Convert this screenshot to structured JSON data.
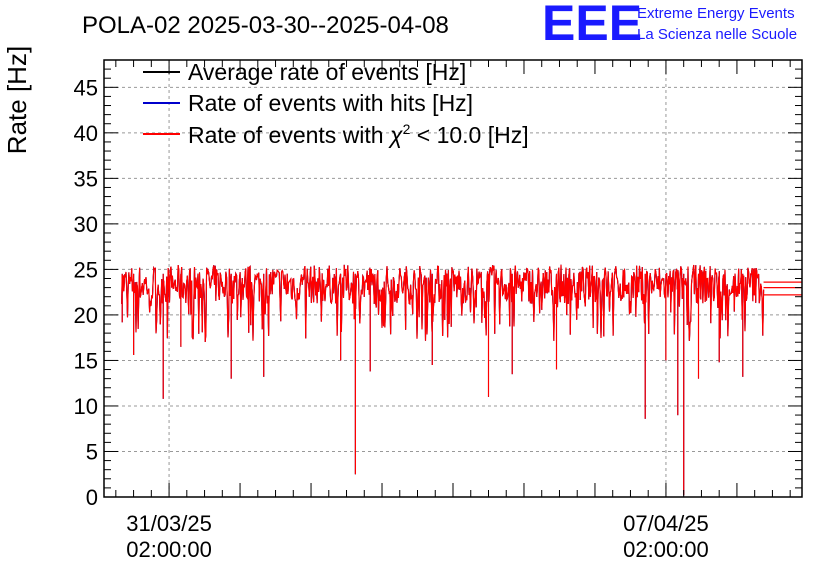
{
  "chart_data": {
    "type": "line",
    "title": "POLA-02 2025-03-30--2025-04-08",
    "ylabel": "Rate [Hz]",
    "xlabel": "",
    "ylim": [
      0,
      48
    ],
    "yticks": [
      0,
      5,
      10,
      15,
      20,
      25,
      30,
      35,
      40,
      45
    ],
    "x_tick_labels": [
      {
        "date": "31/03/25",
        "time": "02:00:00",
        "value": "2025-03-31T02:00:00"
      },
      {
        "date": "07/04/25",
        "time": "02:00:00",
        "value": "2025-04-07T02:00:00"
      }
    ],
    "xlim": [
      "2025-03-30T04:00:00",
      "2025-04-09T00:00:00"
    ],
    "grid": true,
    "legend_position": "top-left",
    "legend_label_prefix": "Rate of events with ",
    "legend_label_suffix": " < 10.0 [Hz]",
    "series": [
      {
        "name": "Average rate of events [Hz]",
        "color": "#000000",
        "style": "line"
      },
      {
        "name": "Rate of events with hits [Hz]",
        "color": "#0000cc",
        "style": "line"
      },
      {
        "name": "Rate of events with χ2 < 10.0 [Hz]",
        "color": "#ff0000",
        "style": "line"
      }
    ],
    "data_start": "2025-03-30T10:00:00",
    "data_end": "2025-04-08T11:00:00",
    "typical_range": [
      20,
      25.5
    ],
    "dips": [
      {
        "t": "2025-03-30T10:10:00",
        "y": 19.2
      },
      {
        "t": "2025-03-30T14:00:00",
        "y": 15.6
      },
      {
        "t": "2025-03-31T00:00:00",
        "y": 10.8
      },
      {
        "t": "2025-03-31T06:00:00",
        "y": 16.5
      },
      {
        "t": "2025-03-31T23:00:00",
        "y": 13.0
      },
      {
        "t": "2025-04-01T10:00:00",
        "y": 13.2
      },
      {
        "t": "2025-04-02T12:00:00",
        "y": 15.0
      },
      {
        "t": "2025-04-02T17:00:00",
        "y": 2.5
      },
      {
        "t": "2025-04-02T22:00:00",
        "y": 13.8
      },
      {
        "t": "2025-04-03T19:00:00",
        "y": 14.5
      },
      {
        "t": "2025-04-04T14:00:00",
        "y": 11.0
      },
      {
        "t": "2025-04-04T22:00:00",
        "y": 13.5
      },
      {
        "t": "2025-04-05T13:00:00",
        "y": 14.0
      },
      {
        "t": "2025-04-06T19:00:00",
        "y": 8.6
      },
      {
        "t": "2025-04-07T02:00:00",
        "y": 15.0
      },
      {
        "t": "2025-04-07T06:00:00",
        "y": 9.0
      },
      {
        "t": "2025-04-07T08:00:00",
        "y": 0.2
      },
      {
        "t": "2025-04-07T13:00:00",
        "y": 13.0
      },
      {
        "t": "2025-04-07T20:00:00",
        "y": 14.8
      },
      {
        "t": "2025-04-08T04:00:00",
        "y": 13.2
      }
    ],
    "tail_levels": [
      22.2,
      23.0,
      23.6
    ]
  },
  "logo": {
    "text": "EEE",
    "line1": "Extreme Energy Events",
    "line2": "La Scienza nelle Scuole"
  }
}
